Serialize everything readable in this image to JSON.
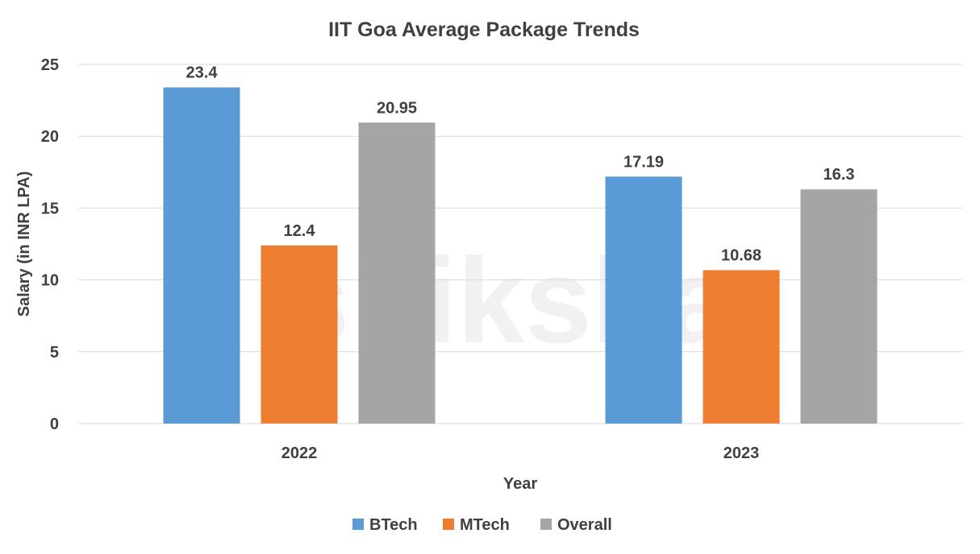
{
  "chart_data": {
    "type": "bar",
    "title": "IIT Goa Average Package Trends",
    "xlabel": "Year",
    "ylabel": "Salary (in INR LPA)",
    "categories": [
      "2022",
      "2023"
    ],
    "series": [
      {
        "name": "BTech",
        "values": [
          23.4,
          17.19
        ],
        "labels": [
          "23.4",
          "17.19"
        ],
        "color": "#5B9BD5"
      },
      {
        "name": "MTech",
        "values": [
          12.4,
          10.68
        ],
        "labels": [
          "12.4",
          "10.68"
        ],
        "color": "#ED7D31"
      },
      {
        "name": "Overall",
        "values": [
          20.95,
          16.3
        ],
        "labels": [
          "20.95",
          "16.3"
        ],
        "color": "#A5A5A5"
      }
    ],
    "ylim": [
      0,
      25
    ],
    "yticks": [
      "0",
      "5",
      "10",
      "15",
      "20",
      "25"
    ],
    "grid": true,
    "legend": "bottom"
  },
  "watermark": "shiksha"
}
